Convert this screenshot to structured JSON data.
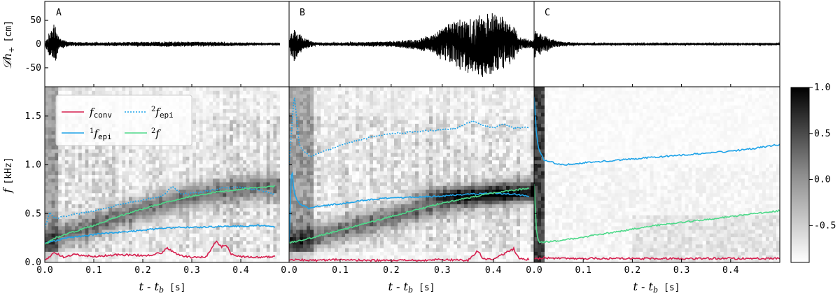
{
  "figure": {
    "panel_labels": [
      "A",
      "B",
      "C"
    ],
    "top_ylabel_main": "𝒟h",
    "top_ylabel_sub": "+",
    "top_ylabel_unit": "[cm]",
    "bottom_ylabel_main": "f",
    "bottom_ylabel_unit": "[kHz]",
    "xlabel_main": "t - t",
    "xlabel_sub": "b",
    "xlabel_unit": "[s]",
    "colorbar_ticks": [
      "1.0",
      "0.5",
      "0.0",
      "-0.5"
    ]
  },
  "legend": {
    "conv_main": "f",
    "conv_sub": "conv",
    "epi1_sup": "1",
    "epi1_main": "f",
    "epi1_sub": "epi",
    "epi2_sup": "2",
    "epi2_main": "f",
    "epi2_sub": "epi",
    "f2_sup": "2",
    "f2_main": "f"
  },
  "colors": {
    "conv": "#d6204f",
    "epi": "#1fa3e8",
    "f2": "#4fd98a",
    "waveform": "#000000"
  },
  "chart_data": [
    {
      "type": "line",
      "panel": "A",
      "description": "GW strain waveform",
      "ylim": [
        -90,
        90
      ],
      "yticks": [
        -50,
        0,
        50
      ],
      "xlim": [
        0,
        0.48
      ],
      "xticks": [
        0.0,
        0.1,
        0.2,
        0.3,
        0.4
      ],
      "envelope": [
        [
          0.0,
          2
        ],
        [
          0.005,
          15
        ],
        [
          0.015,
          40
        ],
        [
          0.02,
          45
        ],
        [
          0.03,
          12
        ],
        [
          0.05,
          5
        ],
        [
          0.1,
          4
        ],
        [
          0.2,
          5
        ],
        [
          0.25,
          6
        ],
        [
          0.35,
          5
        ],
        [
          0.4,
          4
        ],
        [
          0.47,
          3
        ]
      ]
    },
    {
      "type": "line",
      "panel": "B",
      "description": "GW strain waveform",
      "ylim": [
        -90,
        90
      ],
      "yticks": [
        -50,
        0,
        50
      ],
      "xlim": [
        0,
        0.48
      ],
      "xticks": [
        0.0,
        0.1,
        0.2,
        0.3,
        0.4
      ],
      "envelope": [
        [
          0.0,
          2
        ],
        [
          0.005,
          40
        ],
        [
          0.015,
          35
        ],
        [
          0.025,
          15
        ],
        [
          0.05,
          4
        ],
        [
          0.1,
          4
        ],
        [
          0.2,
          6
        ],
        [
          0.25,
          12
        ],
        [
          0.28,
          20
        ],
        [
          0.3,
          35
        ],
        [
          0.33,
          55
        ],
        [
          0.36,
          65
        ],
        [
          0.38,
          72
        ],
        [
          0.4,
          65
        ],
        [
          0.42,
          60
        ],
        [
          0.44,
          40
        ],
        [
          0.45,
          15
        ],
        [
          0.47,
          10
        ]
      ]
    },
    {
      "type": "line",
      "panel": "C",
      "description": "GW strain waveform",
      "ylim": [
        -90,
        90
      ],
      "yticks": [
        -50,
        0,
        50
      ],
      "xlim": [
        0,
        0.5
      ],
      "xticks": [
        0.0,
        0.1,
        0.2,
        0.3,
        0.4
      ],
      "envelope": [
        [
          0.0,
          35
        ],
        [
          0.01,
          25
        ],
        [
          0.02,
          20
        ],
        [
          0.04,
          10
        ],
        [
          0.06,
          5
        ],
        [
          0.1,
          3
        ],
        [
          0.2,
          3
        ],
        [
          0.3,
          3
        ],
        [
          0.4,
          3
        ],
        [
          0.5,
          3
        ]
      ]
    },
    {
      "type": "heatmap",
      "panel": "A",
      "ylim": [
        0,
        1.8
      ],
      "yticks": [
        0.0,
        0.5,
        1.0,
        1.5
      ],
      "xlim": [
        0,
        0.48
      ],
      "xticks": [
        0.0,
        0.1,
        0.2,
        0.3,
        0.4
      ],
      "series": [
        {
          "name": "conv",
          "style": "solid",
          "x": [
            0,
            0.02,
            0.04,
            0.06,
            0.1,
            0.15,
            0.2,
            0.22,
            0.24,
            0.25,
            0.27,
            0.3,
            0.33,
            0.35,
            0.36,
            0.37,
            0.38,
            0.4,
            0.44,
            0.47
          ],
          "y": [
            0.02,
            0.1,
            0.05,
            0.08,
            0.06,
            0.08,
            0.07,
            0.08,
            0.1,
            0.15,
            0.08,
            0.05,
            0.06,
            0.22,
            0.16,
            0.18,
            0.09,
            0.06,
            0.05,
            0.06
          ]
        },
        {
          "name": "1f_epi",
          "style": "solid",
          "x": [
            0,
            0.02,
            0.04,
            0.08,
            0.12,
            0.16,
            0.2,
            0.24,
            0.28,
            0.32,
            0.36,
            0.4,
            0.44,
            0.47
          ],
          "y": [
            0.2,
            0.22,
            0.25,
            0.27,
            0.3,
            0.31,
            0.33,
            0.35,
            0.36,
            0.36,
            0.37,
            0.37,
            0.38,
            0.36
          ]
        },
        {
          "name": "2f_epi",
          "style": "dotted",
          "x": [
            0,
            0.01,
            0.02,
            0.04,
            0.08,
            0.12,
            0.16,
            0.2,
            0.24,
            0.26,
            0.28,
            0.32,
            0.36,
            0.4,
            0.44,
            0.47
          ],
          "y": [
            0.35,
            0.52,
            0.45,
            0.47,
            0.51,
            0.55,
            0.6,
            0.64,
            0.68,
            0.78,
            0.7,
            0.72,
            0.76,
            0.77,
            0.74,
            0.7
          ]
        },
        {
          "name": "2f",
          "style": "solid",
          "x": [
            0,
            0.02,
            0.05,
            0.1,
            0.15,
            0.2,
            0.25,
            0.3,
            0.35,
            0.4,
            0.44,
            0.47
          ],
          "y": [
            0.18,
            0.25,
            0.3,
            0.38,
            0.47,
            0.55,
            0.62,
            0.68,
            0.72,
            0.75,
            0.77,
            0.78
          ]
        }
      ]
    },
    {
      "type": "heatmap",
      "panel": "B",
      "ylim": [
        0,
        1.8
      ],
      "yticks": [
        0.0,
        0.5,
        1.0,
        1.5
      ],
      "xlim": [
        0,
        0.48
      ],
      "xticks": [
        0.0,
        0.1,
        0.2,
        0.3,
        0.4
      ],
      "series": [
        {
          "name": "conv",
          "style": "solid",
          "x": [
            0,
            0.02,
            0.05,
            0.1,
            0.15,
            0.2,
            0.25,
            0.3,
            0.35,
            0.37,
            0.38,
            0.4,
            0.44,
            0.45,
            0.47
          ],
          "y": [
            0.02,
            0.03,
            0.02,
            0.03,
            0.02,
            0.02,
            0.02,
            0.03,
            0.02,
            0.12,
            0.04,
            0.03,
            0.14,
            0.04,
            0.03
          ]
        },
        {
          "name": "1f_epi",
          "style": "solid",
          "x": [
            0,
            0.005,
            0.01,
            0.02,
            0.04,
            0.06,
            0.1,
            0.15,
            0.2,
            0.25,
            0.3,
            0.35,
            0.4,
            0.44,
            0.47
          ],
          "y": [
            0.2,
            1.0,
            0.7,
            0.6,
            0.55,
            0.58,
            0.6,
            0.64,
            0.66,
            0.67,
            0.68,
            0.7,
            0.71,
            0.7,
            0.68
          ]
        },
        {
          "name": "2f_epi",
          "style": "dotted",
          "x": [
            0,
            0.01,
            0.02,
            0.04,
            0.06,
            0.1,
            0.15,
            0.2,
            0.25,
            0.3,
            0.33,
            0.36,
            0.38,
            0.4,
            0.42,
            0.44,
            0.47
          ],
          "y": [
            1.0,
            1.72,
            1.2,
            1.08,
            1.12,
            1.2,
            1.27,
            1.32,
            1.34,
            1.36,
            1.38,
            1.45,
            1.4,
            1.38,
            1.42,
            1.38,
            1.38
          ]
        },
        {
          "name": "2f",
          "style": "solid",
          "x": [
            0,
            0.02,
            0.05,
            0.1,
            0.15,
            0.2,
            0.25,
            0.3,
            0.35,
            0.4,
            0.44,
            0.47
          ],
          "y": [
            0.2,
            0.22,
            0.26,
            0.33,
            0.4,
            0.47,
            0.54,
            0.61,
            0.66,
            0.71,
            0.74,
            0.76
          ]
        }
      ]
    },
    {
      "type": "heatmap",
      "panel": "C",
      "ylim": [
        0,
        1.8
      ],
      "yticks": [
        0.0,
        0.5,
        1.0,
        1.5
      ],
      "xlim": [
        0,
        0.5
      ],
      "xticks": [
        0.0,
        0.1,
        0.2,
        0.3,
        0.4
      ],
      "series": [
        {
          "name": "conv",
          "style": "solid",
          "x": [
            0,
            0.02,
            0.05,
            0.1,
            0.2,
            0.3,
            0.4,
            0.5
          ],
          "y": [
            0.03,
            0.05,
            0.04,
            0.04,
            0.04,
            0.04,
            0.04,
            0.04
          ]
        },
        {
          "name": "1f_epi",
          "style": "solid",
          "x": [
            0,
            0.005,
            0.01,
            0.02,
            0.04,
            0.06,
            0.1,
            0.15,
            0.2,
            0.25,
            0.3,
            0.35,
            0.4,
            0.45,
            0.5
          ],
          "y": [
            1.7,
            1.3,
            1.15,
            1.05,
            1.02,
            1.0,
            1.02,
            1.04,
            1.06,
            1.08,
            1.1,
            1.12,
            1.14,
            1.17,
            1.21
          ]
        },
        {
          "name": "2f",
          "style": "solid",
          "x": [
            0,
            0.005,
            0.01,
            0.02,
            0.05,
            0.1,
            0.15,
            0.2,
            0.25,
            0.3,
            0.35,
            0.4,
            0.45,
            0.5
          ],
          "y": [
            0.8,
            0.3,
            0.2,
            0.21,
            0.22,
            0.26,
            0.3,
            0.34,
            0.38,
            0.41,
            0.44,
            0.47,
            0.5,
            0.53
          ]
        }
      ]
    }
  ],
  "colorbar": {
    "range": [
      -0.9,
      1.0
    ]
  }
}
